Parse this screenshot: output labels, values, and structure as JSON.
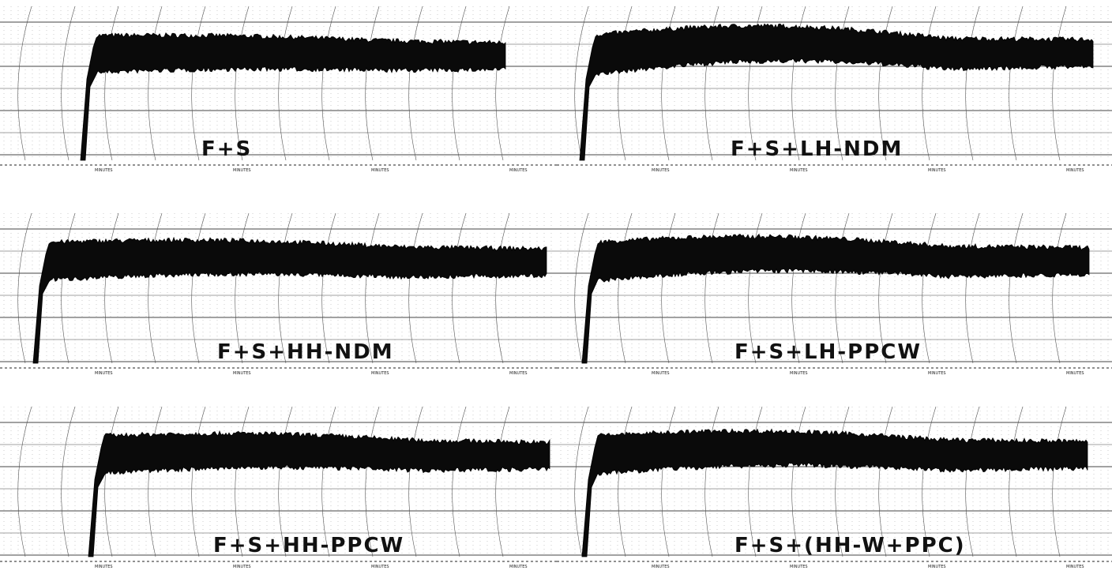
{
  "panels": [
    {
      "label": "F+S"
    },
    {
      "label": "F+S+LH-NDM"
    },
    {
      "label": "F+S+HH-NDM"
    },
    {
      "label": "F+S+LH-PPCW"
    },
    {
      "label": "F+S+HH-PPCW"
    },
    {
      "label": "F+S+(HH-W+PPC)"
    }
  ],
  "axis_label": "MINUTES"
}
